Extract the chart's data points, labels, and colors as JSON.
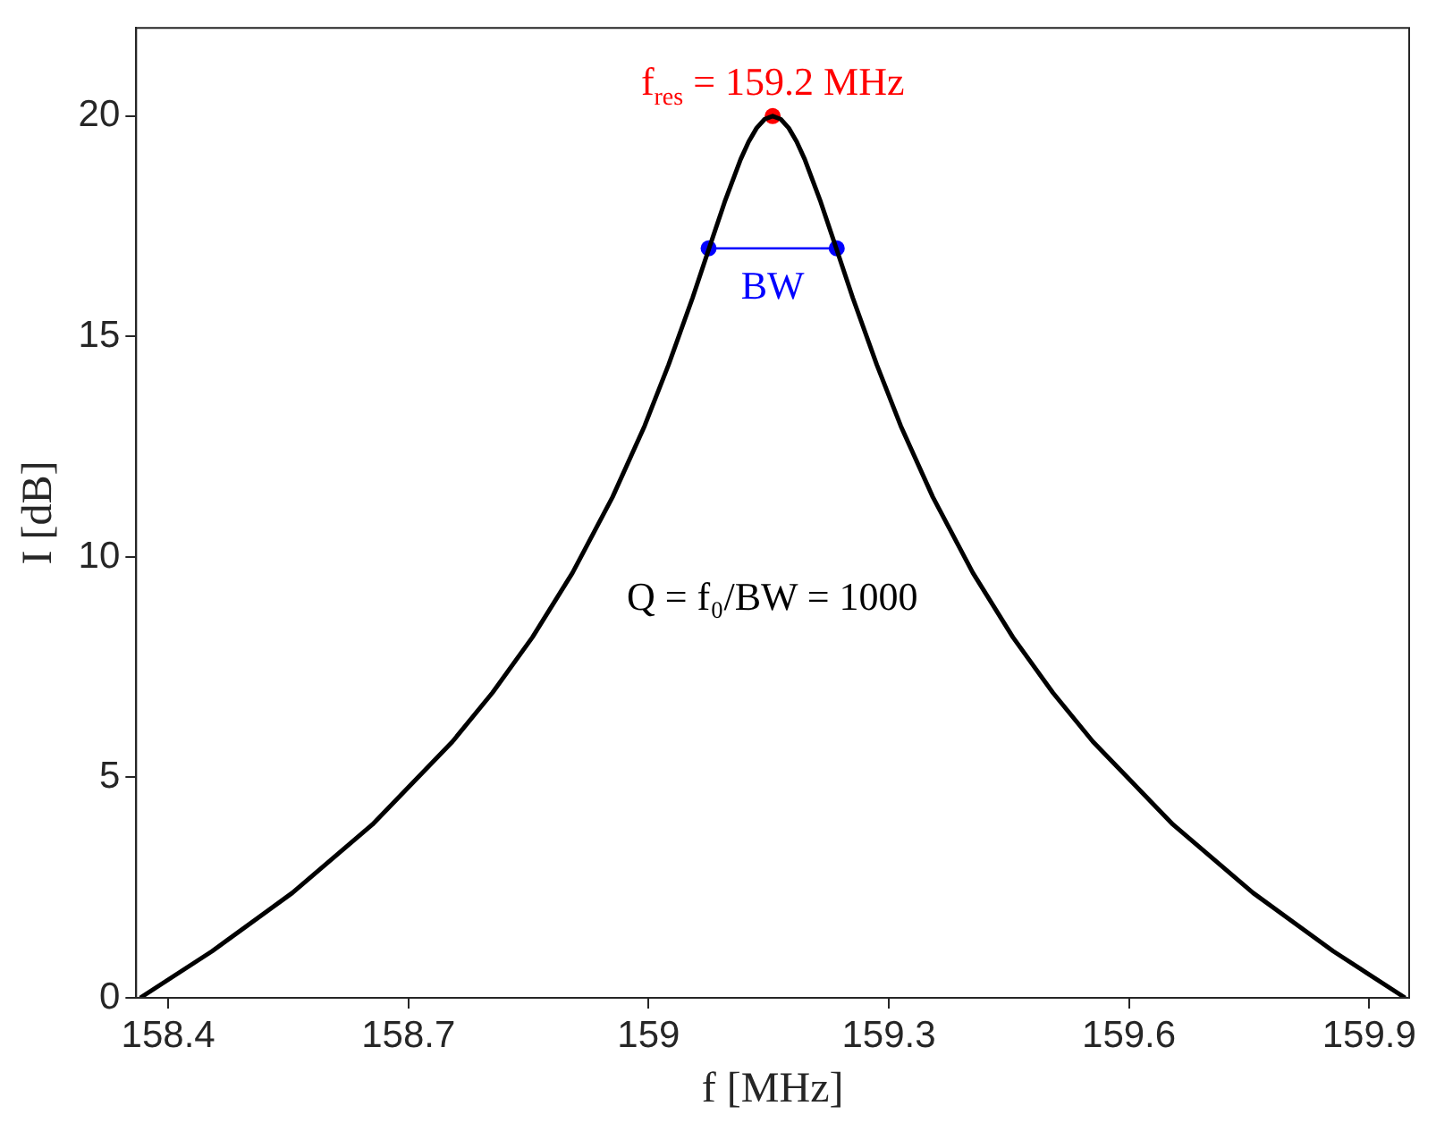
{
  "chart_data": {
    "type": "line",
    "xlabel": "f [MHz]",
    "ylabel": "I [dB]",
    "xlim": [
      158.36,
      159.95
    ],
    "xticks": [
      158.4,
      158.7,
      159,
      159.3,
      159.6,
      159.9
    ],
    "ylim": [
      0,
      22
    ],
    "yticks": [
      0,
      5,
      10,
      15,
      20
    ],
    "grid": false,
    "legend": false,
    "series": [
      {
        "type": "line",
        "color": "#000000",
        "marker": "none",
        "x": [
          158.365,
          158.455,
          158.555,
          158.655,
          158.755,
          158.805,
          158.855,
          158.905,
          158.955,
          158.995,
          159.025,
          159.055,
          159.075,
          159.095,
          159.115,
          159.125,
          159.135,
          159.145,
          159.155,
          159.165,
          159.175,
          159.185,
          159.195,
          159.215,
          159.235,
          159.255,
          159.285,
          159.315,
          159.355,
          159.405,
          159.455,
          159.505,
          159.555,
          159.655,
          159.755,
          159.855,
          159.945
        ],
        "values": [
          0,
          1.06,
          2.38,
          3.93,
          5.81,
          6.92,
          8.18,
          9.64,
          11.36,
          12.97,
          14.36,
          15.88,
          16.97,
          18.05,
          19.02,
          19.42,
          19.73,
          19.93,
          20,
          19.93,
          19.73,
          19.42,
          19.02,
          18.05,
          16.97,
          15.88,
          14.36,
          12.97,
          11.36,
          9.64,
          8.18,
          6.92,
          5.81,
          3.93,
          2.38,
          1.06,
          0
        ]
      },
      {
        "type": "scatter",
        "color": "#ff0000",
        "marker": "circle",
        "x": [
          159.155
        ],
        "values": [
          20
        ]
      },
      {
        "type": "line",
        "color": "#0000ff",
        "marker": "circle",
        "x": [
          159.075,
          159.235
        ],
        "values": [
          17,
          17
        ]
      }
    ],
    "annotations": [
      {
        "text": "f$_{res}$ = 159.2 MHz",
        "x": 159.155,
        "y": 20
      },
      {
        "text": "BW",
        "x": 159.155,
        "y": 17
      },
      "Q = f₀/BW = 1000"
    ]
  }
}
